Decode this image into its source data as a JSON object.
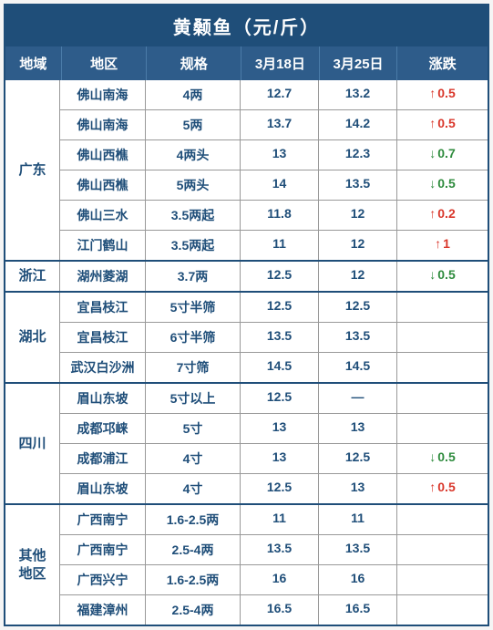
{
  "title": "黄颡鱼（元/斤）",
  "headers": {
    "region": "地域",
    "area": "地区",
    "spec": "规格",
    "date1": "3月18日",
    "date2": "3月25日",
    "change": "涨跌"
  },
  "colors": {
    "header_bg": "#1f4e79",
    "subheader_bg": "#2e5c8a",
    "text": "#1f4e79",
    "up": "#d9372b",
    "down": "#2e8b3d",
    "border": "#999"
  },
  "regions": [
    {
      "name": "广东",
      "rows": [
        {
          "area": "佛山南海",
          "spec": "4两",
          "d1": "12.7",
          "d2": "13.2",
          "chg_dir": "up",
          "chg_val": "0.5"
        },
        {
          "area": "佛山南海",
          "spec": "5两",
          "d1": "13.7",
          "d2": "14.2",
          "chg_dir": "up",
          "chg_val": "0.5"
        },
        {
          "area": "佛山西樵",
          "spec": "4两头",
          "d1": "13",
          "d2": "12.3",
          "chg_dir": "down",
          "chg_val": "0.7"
        },
        {
          "area": "佛山西樵",
          "spec": "5两头",
          "d1": "14",
          "d2": "13.5",
          "chg_dir": "down",
          "chg_val": "0.5"
        },
        {
          "area": "佛山三水",
          "spec": "3.5两起",
          "d1": "11.8",
          "d2": "12",
          "chg_dir": "up",
          "chg_val": "0.2"
        },
        {
          "area": "江门鹤山",
          "spec": "3.5两起",
          "d1": "11",
          "d2": "12",
          "chg_dir": "up",
          "chg_val": "1"
        }
      ]
    },
    {
      "name": "浙江",
      "rows": [
        {
          "area": "湖州菱湖",
          "spec": "3.7两",
          "d1": "12.5",
          "d2": "12",
          "chg_dir": "down",
          "chg_val": "0.5"
        }
      ]
    },
    {
      "name": "湖北",
      "rows": [
        {
          "area": "宜昌枝江",
          "spec": "5寸半筛",
          "d1": "12.5",
          "d2": "12.5",
          "chg_dir": "",
          "chg_val": ""
        },
        {
          "area": "宜昌枝江",
          "spec": "6寸半筛",
          "d1": "13.5",
          "d2": "13.5",
          "chg_dir": "",
          "chg_val": ""
        },
        {
          "area": "武汉白沙洲",
          "spec": "7寸筛",
          "d1": "14.5",
          "d2": "14.5",
          "chg_dir": "",
          "chg_val": ""
        }
      ]
    },
    {
      "name": "四川",
      "rows": [
        {
          "area": "眉山东坡",
          "spec": "5寸以上",
          "d1": "12.5",
          "d2": "—",
          "chg_dir": "",
          "chg_val": ""
        },
        {
          "area": "成都邛崃",
          "spec": "5寸",
          "d1": "13",
          "d2": "13",
          "chg_dir": "",
          "chg_val": ""
        },
        {
          "area": "成都浦江",
          "spec": "4寸",
          "d1": "13",
          "d2": "12.5",
          "chg_dir": "down",
          "chg_val": "0.5"
        },
        {
          "area": "眉山东坡",
          "spec": "4寸",
          "d1": "12.5",
          "d2": "13",
          "chg_dir": "up",
          "chg_val": "0.5"
        }
      ]
    },
    {
      "name": "其他\n地区",
      "rows": [
        {
          "area": "广西南宁",
          "spec": "1.6-2.5两",
          "d1": "11",
          "d2": "11",
          "chg_dir": "",
          "chg_val": ""
        },
        {
          "area": "广西南宁",
          "spec": "2.5-4两",
          "d1": "13.5",
          "d2": "13.5",
          "chg_dir": "",
          "chg_val": ""
        },
        {
          "area": "广西兴宁",
          "spec": "1.6-2.5两",
          "d1": "16",
          "d2": "16",
          "chg_dir": "",
          "chg_val": ""
        },
        {
          "area": "福建漳州",
          "spec": "2.5-4两",
          "d1": "16.5",
          "d2": "16.5",
          "chg_dir": "",
          "chg_val": ""
        }
      ]
    }
  ]
}
